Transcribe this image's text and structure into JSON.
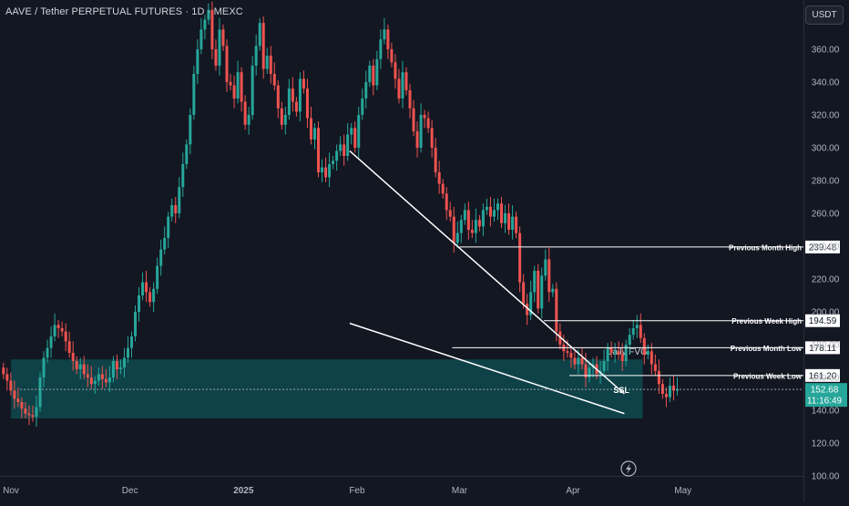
{
  "header": {
    "title": "AAVE / Tether PERPETUAL FUTURES · 1D · MEXC",
    "currency": "USDT"
  },
  "colors": {
    "background": "#131722",
    "bull": "#26a69a",
    "bear": "#ef5350",
    "fvg_zone": "#0e4a4f",
    "annotation": "#ffffff",
    "price_tag": "#26a69a"
  },
  "chart_data": {
    "type": "candlestick",
    "instrument": "AAVE / Tether PERPETUAL FUTURES",
    "interval": "1D",
    "exchange": "MEXC",
    "y_axis": {
      "min": 100,
      "max": 380,
      "scale": "linear",
      "side": "right",
      "ticks": [
        "100.00",
        "120.00",
        "140.00",
        "160.00",
        "180.00",
        "200.00",
        "220.00",
        "240.00",
        "260.00",
        "280.00",
        "300.00",
        "320.00",
        "340.00",
        "360.00"
      ]
    },
    "x_axis": {
      "start_date": "2024-10-27",
      "end_date": "2025-05-02",
      "tick_labels": [
        {
          "label": "Nov",
          "date": "2024-11-01"
        },
        {
          "label": "Dec",
          "date": "2024-12-01"
        },
        {
          "label": "2025",
          "date": "2025-01-01"
        },
        {
          "label": "Feb",
          "date": "2025-02-01"
        },
        {
          "label": "Mar",
          "date": "2025-03-01"
        },
        {
          "label": "Apr",
          "date": "2025-04-01"
        },
        {
          "label": "May",
          "date": "2025-05-01"
        }
      ]
    },
    "grid": false,
    "candles_start_date": "2024-10-27",
    "closes": [
      162,
      158,
      152,
      147,
      145,
      141,
      138,
      137,
      136,
      142,
      160,
      172,
      178,
      185,
      192,
      190,
      188,
      182,
      175,
      170,
      165,
      168,
      162,
      160,
      156,
      158,
      162,
      159,
      157,
      160,
      170,
      165,
      166,
      172,
      178,
      185,
      200,
      210,
      218,
      212,
      206,
      214,
      228,
      238,
      245,
      258,
      265,
      260,
      276,
      290,
      302,
      320,
      345,
      360,
      372,
      378,
      384,
      360,
      350,
      372,
      362,
      340,
      338,
      330,
      346,
      328,
      314,
      320,
      350,
      362,
      376,
      348,
      356,
      345,
      338,
      324,
      314,
      320,
      336,
      328,
      322,
      342,
      336,
      318,
      305,
      312,
      285,
      288,
      282,
      290,
      292,
      298,
      302,
      295,
      308,
      312,
      300,
      320,
      330,
      340,
      350,
      338,
      354,
      366,
      372,
      360,
      352,
      342,
      330,
      346,
      335,
      324,
      310,
      300,
      320,
      318,
      312,
      300,
      285,
      278,
      272,
      262,
      258,
      242,
      248,
      256,
      262,
      250,
      248,
      256,
      252,
      262,
      264,
      258,
      262,
      266,
      254,
      260,
      250,
      258,
      248,
      218,
      205,
      198,
      212,
      225,
      202,
      222,
      232,
      212,
      214,
      188,
      180,
      176,
      175,
      172,
      168,
      172,
      168,
      160,
      166,
      168,
      162,
      164,
      170,
      178,
      175,
      176,
      174,
      170,
      180,
      186,
      190,
      192,
      184,
      174,
      176,
      168,
      164,
      156,
      150,
      148,
      155,
      152,
      153
    ],
    "current_price": "152.68",
    "countdown": "11:16:49",
    "levels": [
      {
        "name": "Previous Month High",
        "value": 239.48,
        "label": "239.48"
      },
      {
        "name": "Previous Week High",
        "value": 194.59,
        "label": "194.59"
      },
      {
        "name": "Previous Month Low",
        "value": 178.11,
        "label": "178.11"
      },
      {
        "name": "Previous Week Low",
        "value": 161.2,
        "label": "161.20"
      }
    ],
    "zone": {
      "label": "Daily FVG",
      "top": 171,
      "bottom": 135,
      "from_date": "2024-11-01",
      "to_date": "2025-04-20"
    },
    "ssl": {
      "label": "SSL",
      "value": 152.68
    },
    "wedge": {
      "upper": [
        {
          "date": "2025-01-30",
          "value": 298
        },
        {
          "date": "2025-04-15",
          "value": 150
        }
      ],
      "lower": [
        {
          "date": "2025-01-30",
          "value": 193
        },
        {
          "date": "2025-04-15",
          "value": 138
        }
      ]
    }
  }
}
